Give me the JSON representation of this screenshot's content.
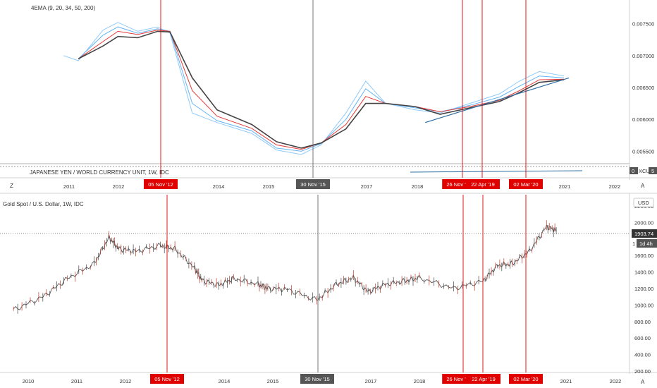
{
  "top_panel": {
    "legend": "4EMA (9, 20, 34, 50, 200)",
    "sub_legend": "JAPANESE YEN / WORLD CURRENCY UNIT, 1W, IDC",
    "y_ticks": [
      "0.007500",
      "0.007000",
      "0.006500",
      "0.006000",
      "0.005500"
    ],
    "x_ticks": [
      "2011",
      "2012",
      "2014",
      "2015",
      "2017",
      "2018",
      "2021",
      "2022"
    ],
    "corner_left": "Z",
    "corner_right": "A",
    "sub_value": "0",
    "sub_symbol": "XCU",
    "sub_tail": "5"
  },
  "bottom_panel": {
    "legend": "Gold Spot / U.S. Dollar, 1W, IDC",
    "currency": "USD",
    "y_ticks": [
      "2200.00",
      "2000.00",
      "1600.00",
      "1400.00",
      "1200.00",
      "1000.00",
      "800.00",
      "600.00",
      "400.00",
      "200.00"
    ],
    "x_ticks": [
      "2010",
      "2011",
      "2012",
      "2014",
      "2015",
      "2017",
      "2018",
      "2021",
      "2022"
    ],
    "price_label": "1903.74",
    "timeframe_label": "1d 4h",
    "axis_peek": "1",
    "corner_right": "A"
  },
  "markers": [
    {
      "label": "05 Nov '12",
      "color": "red"
    },
    {
      "label": "30 Nov '15",
      "color": "gray"
    },
    {
      "label": "26 Nov '",
      "color": "red"
    },
    {
      "label": "22 Apr '19",
      "color": "red"
    },
    {
      "label": "02 Mar '20",
      "color": "red"
    }
  ],
  "chart_data": [
    {
      "type": "line",
      "series": [
        {
          "name": "9",
          "color": "#90caf9",
          "x": [
            2010.7,
            2011.0,
            2011.5,
            2011.8,
            2012.2,
            2012.6,
            2012.85,
            2013.3,
            2013.8,
            2014.5,
            2015.0,
            2015.5,
            2015.9,
            2016.4,
            2016.8,
            2017.2,
            2017.8,
            2018.3,
            2018.9,
            2019.5,
            2019.9,
            2020.3,
            2020.8
          ],
          "y": [
            0.007,
            0.00692,
            0.0074,
            0.00752,
            0.00738,
            0.00745,
            0.00735,
            0.0061,
            0.00595,
            0.00578,
            0.00552,
            0.00545,
            0.0056,
            0.0061,
            0.0066,
            0.00625,
            0.00615,
            0.0061,
            0.00625,
            0.0064,
            0.0066,
            0.00675,
            0.00668
          ]
        },
        {
          "name": "20",
          "color": "#64b5f6",
          "x": [
            2011.0,
            2011.5,
            2011.8,
            2012.2,
            2012.6,
            2012.85,
            2013.3,
            2013.8,
            2014.5,
            2015.0,
            2015.5,
            2015.9,
            2016.4,
            2016.8,
            2017.2,
            2017.8,
            2018.3,
            2018.9,
            2019.5,
            2019.9,
            2020.3,
            2020.8
          ],
          "y": [
            0.00695,
            0.00732,
            0.00745,
            0.00735,
            0.00742,
            0.00738,
            0.00625,
            0.00598,
            0.00582,
            0.00555,
            0.0055,
            0.00562,
            0.006,
            0.00648,
            0.00625,
            0.00618,
            0.00612,
            0.00622,
            0.00635,
            0.00652,
            0.00668,
            0.00665
          ]
        },
        {
          "name": "34",
          "color": "#e53935",
          "x": [
            2011.0,
            2011.5,
            2011.8,
            2012.2,
            2012.6,
            2012.85,
            2013.3,
            2013.8,
            2014.5,
            2015.0,
            2015.5,
            2015.9,
            2016.4,
            2016.8,
            2017.2,
            2017.8,
            2018.3,
            2018.9,
            2019.5,
            2019.9,
            2020.3,
            2020.8
          ],
          "y": [
            0.00695,
            0.00722,
            0.00738,
            0.00733,
            0.0074,
            0.00738,
            0.00645,
            0.00605,
            0.00586,
            0.0056,
            0.00553,
            0.00563,
            0.00592,
            0.00636,
            0.00625,
            0.0062,
            0.00612,
            0.0062,
            0.0063,
            0.00645,
            0.00662,
            0.00663
          ]
        },
        {
          "name": "50",
          "color": "#444444",
          "x": [
            2011.0,
            2011.5,
            2011.8,
            2012.2,
            2012.6,
            2012.85,
            2013.3,
            2013.8,
            2014.5,
            2015.0,
            2015.5,
            2015.9,
            2016.4,
            2016.8,
            2017.2,
            2017.8,
            2018.3,
            2018.9,
            2019.5,
            2019.9,
            2020.3,
            2020.8
          ],
          "y": [
            0.00695,
            0.00715,
            0.0073,
            0.00728,
            0.00738,
            0.00737,
            0.00665,
            0.00615,
            0.00592,
            0.00565,
            0.00555,
            0.00563,
            0.00585,
            0.00625,
            0.00625,
            0.0062,
            0.00608,
            0.00618,
            0.00628,
            0.00642,
            0.00658,
            0.00662
          ]
        },
        {
          "name": "trendline",
          "color": "#2e6da4",
          "x": [
            2018.0,
            2020.9
          ],
          "y": [
            0.00595,
            0.00665
          ]
        }
      ],
      "ylim": [
        0.00535,
        0.0076
      ],
      "xlim": [
        2010.0,
        2022.6
      ],
      "grid": false
    },
    {
      "type": "bar",
      "title": "Gold Spot / U.S. Dollar, 1W, IDC",
      "x": [
        2009.7,
        2010.3,
        2010.8,
        2011.35,
        2011.65,
        2011.85,
        2012.2,
        2012.7,
        2013.0,
        2013.4,
        2013.55,
        2013.9,
        2014.2,
        2014.7,
        2014.9,
        2015.3,
        2015.9,
        2016.3,
        2016.65,
        2016.95,
        2017.3,
        2017.7,
        2018.0,
        2018.7,
        2019.3,
        2019.6,
        2019.9,
        2020.25,
        2020.6,
        2020.8
      ],
      "y": [
        940,
        1100,
        1320,
        1500,
        1820,
        1680,
        1650,
        1720,
        1680,
        1450,
        1300,
        1240,
        1320,
        1250,
        1200,
        1190,
        1060,
        1250,
        1330,
        1160,
        1250,
        1290,
        1330,
        1200,
        1290,
        1480,
        1500,
        1650,
        1950,
        1900
      ],
      "ylim": [
        200,
        2300
      ],
      "xlim": [
        2009.6,
        2022.6
      ],
      "grid": false
    }
  ]
}
